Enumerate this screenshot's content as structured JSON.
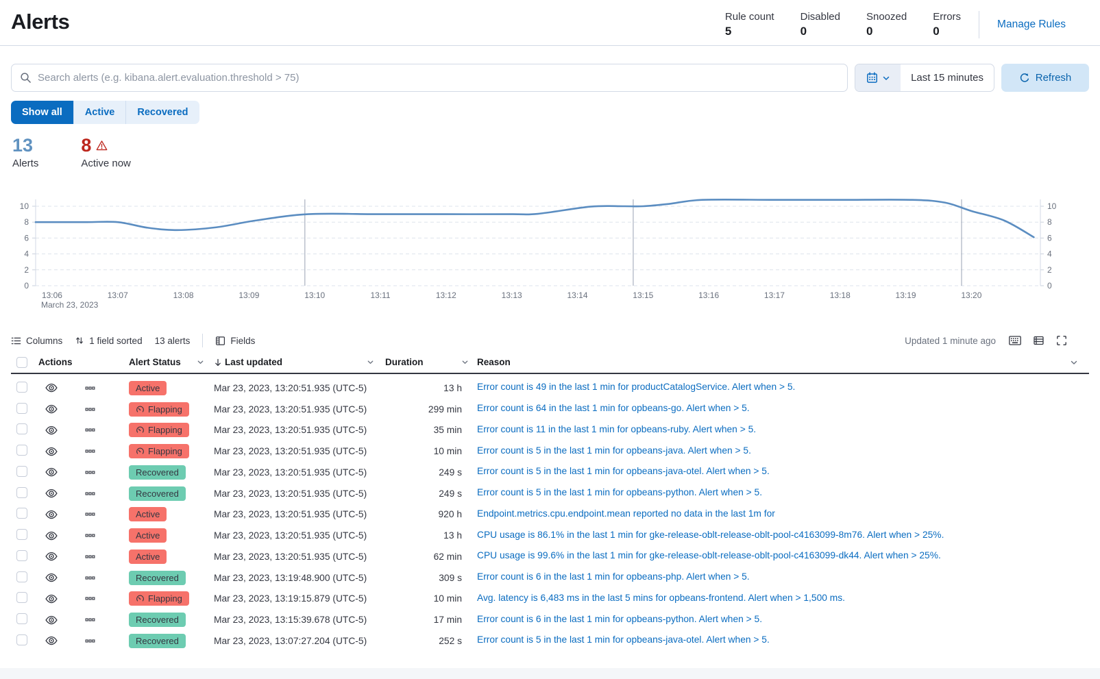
{
  "header": {
    "title": "Alerts",
    "rule_stats": [
      {
        "label": "Rule count",
        "value": "5"
      },
      {
        "label": "Disabled",
        "value": "0"
      },
      {
        "label": "Snoozed",
        "value": "0"
      },
      {
        "label": "Errors",
        "value": "0"
      }
    ],
    "manage_rules_label": "Manage Rules"
  },
  "search": {
    "placeholder": "Search alerts (e.g. kibana.alert.evaluation.threshold > 75)"
  },
  "time_picker": {
    "label": "Last 15 minutes",
    "refresh_label": "Refresh"
  },
  "filters": [
    {
      "label": "Show all",
      "selected": true
    },
    {
      "label": "Active",
      "selected": false
    },
    {
      "label": "Recovered",
      "selected": false
    }
  ],
  "summary": {
    "alerts_count": "13",
    "alerts_label": "Alerts",
    "active_count": "8",
    "active_label": "Active now"
  },
  "chart_data": {
    "type": "line",
    "title": "",
    "xlabel": "",
    "ylabel": "",
    "x_axis_subtitle": "March 23, 2023",
    "x_tick_labels": [
      "13:06",
      "13:07",
      "13:08",
      "13:09",
      "13:10",
      "13:11",
      "13:12",
      "13:13",
      "13:14",
      "13:15",
      "13:16",
      "13:17",
      "13:18",
      "13:19",
      "13:20"
    ],
    "y_ticks": [
      0,
      2,
      4,
      6,
      8,
      10
    ],
    "ylim": [
      0,
      11.6
    ],
    "xlim_minutes": [
      -0.25,
      15.05
    ],
    "grid": true,
    "legend": "none",
    "line_color": "#5b8dc1",
    "annotation_lines_x_minutes": [
      3.85,
      8.85,
      13.85
    ],
    "series": [
      {
        "name": "alerts",
        "points_minutes_value": [
          [
            -0.25,
            8
          ],
          [
            0.5,
            8
          ],
          [
            1.0,
            8
          ],
          [
            1.45,
            7.3
          ],
          [
            1.9,
            7.0
          ],
          [
            2.5,
            7.35
          ],
          [
            3.1,
            8.2
          ],
          [
            3.9,
            9.0
          ],
          [
            5.0,
            9.0
          ],
          [
            6.0,
            9.0
          ],
          [
            7.0,
            9.0
          ],
          [
            7.4,
            9.05
          ],
          [
            8.2,
            9.95
          ],
          [
            8.7,
            10.0
          ],
          [
            9.0,
            10.0
          ],
          [
            9.4,
            10.3
          ],
          [
            9.9,
            10.8
          ],
          [
            11.0,
            10.8
          ],
          [
            12.0,
            10.8
          ],
          [
            13.1,
            10.8
          ],
          [
            13.6,
            10.45
          ],
          [
            14.0,
            9.4
          ],
          [
            14.5,
            8.2
          ],
          [
            14.95,
            6.1
          ]
        ]
      }
    ]
  },
  "toolbar": {
    "columns_label": "Columns",
    "sorted_label": "1 field sorted",
    "count_label": "13 alerts",
    "fields_label": "Fields",
    "updated_label": "Updated 1 minute ago"
  },
  "table": {
    "headers": {
      "actions": "Actions",
      "status": "Alert Status",
      "updated": "Last updated",
      "duration": "Duration",
      "reason": "Reason"
    },
    "rows": [
      {
        "status": "Active",
        "updated": "Mar 23, 2023, 13:20:51.935 (UTC-5)",
        "duration": "13 h",
        "reason": "Error count is 49 in the last 1 min for productCatalogService. Alert when > 5."
      },
      {
        "status": "Flapping",
        "updated": "Mar 23, 2023, 13:20:51.935 (UTC-5)",
        "duration": "299 min",
        "reason": "Error count is 64 in the last 1 min for opbeans-go. Alert when > 5."
      },
      {
        "status": "Flapping",
        "updated": "Mar 23, 2023, 13:20:51.935 (UTC-5)",
        "duration": "35 min",
        "reason": "Error count is 11 in the last 1 min for opbeans-ruby. Alert when > 5."
      },
      {
        "status": "Flapping",
        "updated": "Mar 23, 2023, 13:20:51.935 (UTC-5)",
        "duration": "10 min",
        "reason": "Error count is 5 in the last 1 min for opbeans-java. Alert when > 5."
      },
      {
        "status": "Recovered",
        "updated": "Mar 23, 2023, 13:20:51.935 (UTC-5)",
        "duration": "249 s",
        "reason": "Error count is 5 in the last 1 min for opbeans-java-otel. Alert when > 5."
      },
      {
        "status": "Recovered",
        "updated": "Mar 23, 2023, 13:20:51.935 (UTC-5)",
        "duration": "249 s",
        "reason": "Error count is 5 in the last 1 min for opbeans-python. Alert when > 5."
      },
      {
        "status": "Active",
        "updated": "Mar 23, 2023, 13:20:51.935 (UTC-5)",
        "duration": "920 h",
        "reason": "Endpoint.metrics.cpu.endpoint.mean reported no data in the last 1m for"
      },
      {
        "status": "Active",
        "updated": "Mar 23, 2023, 13:20:51.935 (UTC-5)",
        "duration": "13 h",
        "reason": "CPU usage is 86.1% in the last 1 min for gke-release-oblt-release-oblt-pool-c4163099-8m76. Alert when > 25%."
      },
      {
        "status": "Active",
        "updated": "Mar 23, 2023, 13:20:51.935 (UTC-5)",
        "duration": "62 min",
        "reason": "CPU usage is 99.6% in the last 1 min for gke-release-oblt-release-oblt-pool-c4163099-dk44. Alert when > 25%."
      },
      {
        "status": "Recovered",
        "updated": "Mar 23, 2023, 13:19:48.900 (UTC-5)",
        "duration": "309 s",
        "reason": "Error count is 6 in the last 1 min for opbeans-php. Alert when > 5."
      },
      {
        "status": "Flapping",
        "updated": "Mar 23, 2023, 13:19:15.879 (UTC-5)",
        "duration": "10 min",
        "reason": "Avg. latency is 6,483 ms in the last 5 mins for opbeans-frontend. Alert when > 1,500 ms."
      },
      {
        "status": "Recovered",
        "updated": "Mar 23, 2023, 13:15:39.678 (UTC-5)",
        "duration": "17 min",
        "reason": "Error count is 6 in the last 1 min for opbeans-python. Alert when > 5."
      },
      {
        "status": "Recovered",
        "updated": "Mar 23, 2023, 13:07:27.204 (UTC-5)",
        "duration": "252 s",
        "reason": "Error count is 5 in the last 1 min for opbeans-java-otel. Alert when > 5."
      }
    ]
  },
  "icons": {
    "search-icon": "magnifier",
    "calendar-icon": "calendar",
    "chevron-down-icon": "chevron-down",
    "refresh-icon": "circular-arrow",
    "warning-icon": "triangle-exclamation",
    "columns-icon": "list",
    "sort-fields-icon": "up-down-arrows",
    "fields-icon": "panel-with-rows",
    "keyboard-icon": "keyboard",
    "density-icon": "table-rows",
    "fullscreen-icon": "corner-brackets",
    "eye-icon": "eye",
    "more-actions-icon": "three-boxes",
    "flapping-icon": "gauge",
    "sort-desc-icon": "arrow-down"
  },
  "colors": {
    "primary_blue": "#0a6cc0",
    "stat_blue": "#6092c0",
    "danger_red": "#bd271e",
    "active_badge": "#f6726a",
    "recovered_badge": "#6dccb1",
    "chart_line": "#5b8dc1"
  }
}
